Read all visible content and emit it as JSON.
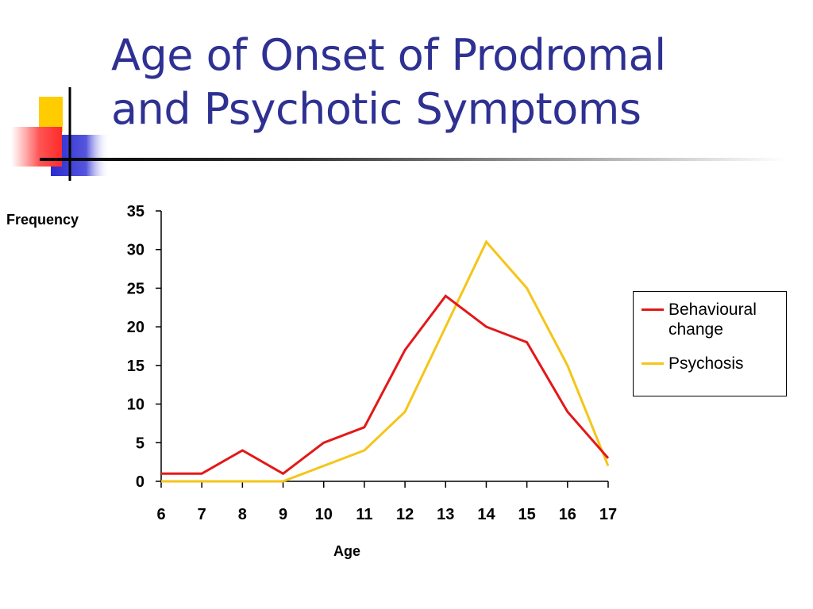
{
  "slide": {
    "title_lines": [
      "Age of Onset of Prodromal",
      "and Psychotic Symptoms"
    ],
    "title_color": "#2e3192"
  },
  "decor": {
    "yellow": "#ffcc00",
    "red": "#ff3333",
    "blue": "#3333cc",
    "line": "#000000"
  },
  "chart_data": {
    "type": "line",
    "x": [
      6,
      7,
      8,
      9,
      10,
      11,
      12,
      13,
      14,
      15,
      16,
      17
    ],
    "series": [
      {
        "name": "Behavioural change",
        "color": "#e31818",
        "values": [
          1,
          1,
          4,
          1,
          5,
          7,
          17,
          24,
          20,
          18,
          9,
          3
        ]
      },
      {
        "name": "Psychosis",
        "color": "#f5c518",
        "values": [
          0,
          0,
          0,
          0,
          2,
          4,
          9,
          20,
          31,
          25,
          15,
          2
        ]
      }
    ],
    "xlabel": "Age",
    "ylabel": "Frequency",
    "ylim": [
      0,
      35
    ],
    "yticks": [
      0,
      5,
      10,
      15,
      20,
      25,
      30,
      35
    ],
    "grid": false,
    "legend_position": "right"
  }
}
